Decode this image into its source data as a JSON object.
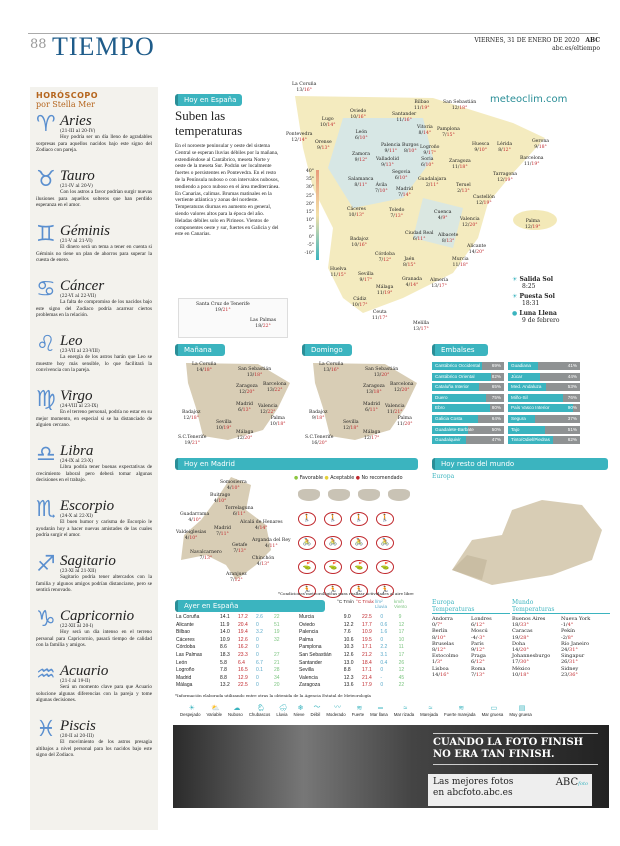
{
  "header": {
    "page_number": "88",
    "section": "TIEMPO",
    "date": "VIERNES, 31 DE ENERO DE 2020",
    "brand": "ABC",
    "url": "abc.es/eltiempo"
  },
  "horoscope": {
    "title": "HORÓSCOPO",
    "author": "por Stella Mer",
    "signs": [
      {
        "glyph": "♈",
        "name": "Aries",
        "dates": "(21-III al 20-IV)",
        "text": "Hoy podría ser un día lleno de agradables sorpresas para aquellos nacidos bajo este signo del Zodiaco con pareja."
      },
      {
        "glyph": "♉",
        "name": "Tauro",
        "dates": "(21-IV al 20-V)",
        "text": "Con los astros a favor podrían surgir nuevas ilusiones para aquellos solteros que han perdido esperanza en el amor."
      },
      {
        "glyph": "♊",
        "name": "Géminis",
        "dates": "(21-V al 21-VI)",
        "text": "El dinero será un tema a tener en cuenta si Géminis no tiene un plan de ahorros para superar la cuesta de enero."
      },
      {
        "glyph": "♋",
        "name": "Cáncer",
        "dates": "(22-VI al 22-VII)",
        "text": "La falta de compromiso de los nacidos bajo este signo del Zodiaco podría acarrear ciertos problemas en la relación."
      },
      {
        "glyph": "♌",
        "name": "Leo",
        "dates": "(23-VII al 23-VIII)",
        "text": "La energía de los astros harán que Leo se muestre hoy más sensible, lo que facilitará la convivencia con la pareja."
      },
      {
        "glyph": "♍",
        "name": "Virgo",
        "dates": "(24-VIII al 23-IX)",
        "text": "En el terreno personal, podría no estar en su mejor momento, en especial si se ha distanciado de alguien cercano."
      },
      {
        "glyph": "♎",
        "name": "Libra",
        "dates": "(24-IX al 23-X)",
        "text": "Libra podría tener buenas expectativas de crecimiento laboral pero deberá tomar algunas decisiones en el trabajo."
      },
      {
        "glyph": "♏",
        "name": "Escorpio",
        "dates": "(24-X al 22-XI)",
        "text": "El buen humor y carisma de Escorpio le ayudarán hoy a hacer nuevas amistades de las cuales podría surgir el amor."
      },
      {
        "glyph": "♐",
        "name": "Sagitario",
        "dates": "(23-XI al 21-XII)",
        "text": "Sagitario podría tener altercados con la familia y algunos amigos podrían distanciarse, pero se sentirá renovado."
      },
      {
        "glyph": "♑",
        "name": "Capricornio",
        "dates": "(22-XII al 20-I)",
        "text": "Hoy será un día intenso en el terreno personal para Capricornio, pasará tiempo de calidad con la familia y amigos."
      },
      {
        "glyph": "♒",
        "name": "Acuario",
        "dates": "(21-I al 19-II)",
        "text": "Será un momento clave para que Acuario solucione algunas diferencias con la pareja y tome algunas decisiones."
      },
      {
        "glyph": "♓",
        "name": "Piscis",
        "dates": "(20-II al 20-III)",
        "text": "El movimiento de los astros presagia altibajos a nivel personal para los nacidos bajo este signo del Zodiaco."
      }
    ]
  },
  "spain_today": {
    "tab": "Hoy en España",
    "headline": "Suben las temperaturas",
    "body": "En el noroeste peninsular y oeste del sistema Central se esperan lluvias débiles por la mañana, extendiéndose al Cantábrico, meseta Norte y oeste de la meseta Sur. Podrán ser localmente fuertes o persistentes en Pontevedra. En el resto de la Península nuboso o con intervalos nubosos, tendiendo a poco nuboso en el área mediterránea. En Canarias, calimas. Brumas matinales en la vertiente atlántica y zonas del nordeste. Temperaturas diurnas en aumento en general, siendo valores altos para la época del año. Heladas débiles solo en Pirineos. Vientos de componentes oeste y sur, fuertes en Galicia y del este en Canarias.",
    "brand": "meteoclim.com",
    "scale": [
      "40°",
      "35°",
      "30°",
      "25°",
      "20°",
      "15°",
      "10°",
      "5°",
      "0°",
      "-5°",
      "-10°"
    ],
    "cities": [
      [
        "La Coruña",
        "13",
        "16"
      ],
      [
        "Lugo",
        "10",
        "14"
      ],
      [
        "Oviedo",
        "10",
        "16"
      ],
      [
        "Pontevedra",
        "12",
        "14"
      ],
      [
        "Orense",
        "9",
        "13"
      ],
      [
        "Santander",
        "11",
        "16"
      ],
      [
        "Bilbao",
        "11",
        "19"
      ],
      [
        "San Sebastián",
        "12",
        "18"
      ],
      [
        "Vitoria",
        "8",
        "14"
      ],
      [
        "Pamplona",
        "7",
        "15"
      ],
      [
        "León",
        "6",
        "10"
      ],
      [
        "Palencia",
        "9",
        "11"
      ],
      [
        "Burgos",
        "8",
        "10"
      ],
      [
        "Logroño",
        "9",
        "17"
      ],
      [
        "Huesca",
        "9",
        "10"
      ],
      [
        "Lérida",
        "8",
        "12"
      ],
      [
        "Gerona",
        "9",
        "18"
      ],
      [
        "Zamora",
        "9",
        "12"
      ],
      [
        "Valladolid",
        "9",
        "13"
      ],
      [
        "Soria",
        "6",
        "10"
      ],
      [
        "Zaragoza",
        "11",
        "18"
      ],
      [
        "Barcelona",
        "11",
        "19"
      ],
      [
        "Segovia",
        "6",
        "10"
      ],
      [
        "Salamanca",
        "8",
        "11"
      ],
      [
        "Ávila",
        "7",
        "10"
      ],
      [
        "Madrid",
        "7",
        "14"
      ],
      [
        "Guadalajara",
        "2",
        "11"
      ],
      [
        "Teruel",
        "2",
        "13"
      ],
      [
        "Tarragona",
        "12",
        "19"
      ],
      [
        "Castellón",
        "12",
        "19"
      ],
      [
        "Cáceres",
        "10",
        "13"
      ],
      [
        "Toledo",
        "7",
        "13"
      ],
      [
        "Cuenca",
        "4",
        "9"
      ],
      [
        "Valencia",
        "12",
        "20"
      ],
      [
        "Palma",
        "12",
        "19"
      ],
      [
        "Badajoz",
        "10",
        "16"
      ],
      [
        "Ciudad Real",
        "6",
        "11"
      ],
      [
        "Albacete",
        "8",
        "13"
      ],
      [
        "Alicante",
        "14",
        "20"
      ],
      [
        "Córdoba",
        "7",
        "12"
      ],
      [
        "Jaén",
        "8",
        "15"
      ],
      [
        "Murcia",
        "11",
        "18"
      ],
      [
        "Huelva",
        "11",
        "15"
      ],
      [
        "Sevilla",
        "9",
        "17"
      ],
      [
        "Granada",
        "4",
        "14"
      ],
      [
        "Almería",
        "13",
        "17"
      ],
      [
        "Málaga",
        "11",
        "19"
      ],
      [
        "Cádiz",
        "10",
        "17"
      ],
      [
        "Ceuta",
        "11",
        "17"
      ],
      [
        "Melilla",
        "13",
        "17"
      ]
    ],
    "canarias": [
      [
        "Santa Cruz de Tenerife",
        "19",
        "21"
      ],
      [
        "Las Palmas",
        "18",
        "22"
      ]
    ]
  },
  "sun_moon": {
    "sunrise_label": "Salida Sol",
    "sunrise": "8:25",
    "sunset_label": "Puesta Sol",
    "sunset": "18:31",
    "moon_label": "Luna Llena",
    "moon_date": "9 de febrero"
  },
  "tomorrow": {
    "tab": "Mañana",
    "cities": [
      [
        "La Coruña",
        "14",
        "18"
      ],
      [
        "San Sebastián",
        "13",
        "18"
      ],
      [
        "Zaragoza",
        "12",
        "20"
      ],
      [
        "Barcelona",
        "13",
        "22"
      ],
      [
        "Madrid",
        "6",
        "13"
      ],
      [
        "Valencia",
        "12",
        "22"
      ],
      [
        "Palma",
        "10",
        "18"
      ],
      [
        "Badajoz",
        "12",
        "18"
      ],
      [
        "Sevilla",
        "10",
        "19"
      ],
      [
        "Málaga",
        "12",
        "20"
      ],
      [
        "S.C.Tenerife",
        "19",
        "21"
      ]
    ]
  },
  "sunday": {
    "tab": "Domingo",
    "cities": [
      [
        "La Coruña",
        "13",
        "16"
      ],
      [
        "San Sebastián",
        "13",
        "20"
      ],
      [
        "Zaragoza",
        "13",
        "18"
      ],
      [
        "Barcelona",
        "12",
        "20"
      ],
      [
        "Madrid",
        "6",
        "11"
      ],
      [
        "Valencia",
        "11",
        "21"
      ],
      [
        "Palma",
        "11",
        "20"
      ],
      [
        "Badajoz",
        "9",
        "18"
      ],
      [
        "Sevilla",
        "12",
        "18"
      ],
      [
        "Málaga",
        "12",
        "17"
      ],
      [
        "S.C.Tenerife",
        "16",
        "20"
      ]
    ]
  },
  "reservoirs": {
    "tab": "Embalses",
    "items": [
      [
        "Cantábrico Occidental",
        69
      ],
      [
        "Cantábrico Oriental",
        82
      ],
      [
        "Cataluña Interior",
        65
      ],
      [
        "Duero",
        75
      ],
      [
        "Ebro",
        80
      ],
      [
        "Galicia Costa",
        64
      ],
      [
        "Guadalete-Barbate",
        50
      ],
      [
        "Guadalquivir",
        47
      ],
      [
        "Guadiana",
        41
      ],
      [
        "Júcar",
        44
      ],
      [
        "Med. Andaluza",
        53
      ],
      [
        "Miño-Sil",
        76
      ],
      [
        "País Vasco Interior",
        90
      ],
      [
        "Segura",
        37
      ],
      [
        "Tajo",
        51
      ],
      [
        "Tinto/Odiel/Piedras",
        62
      ]
    ],
    "fill_color": "#3bb4bf",
    "empty_color": "#8f9293"
  },
  "madrid": {
    "tab": "Hoy en Madrid",
    "legend": [
      "Favorable",
      "Aceptable",
      "No recomendado"
    ],
    "legend_colors": [
      "#8dc63f",
      "#e5d13a",
      "#c0282d"
    ],
    "footnote": "*Condiciones meteorológicas para realizar actividades al aire libre",
    "cities": [
      [
        "Somosierra",
        "4",
        "10"
      ],
      [
        "Buitrago",
        "4",
        "10"
      ],
      [
        "Torrelaguna",
        "6",
        "11"
      ],
      [
        "Guadarrama",
        "4",
        "10"
      ],
      [
        "Alcalá de Henares",
        "4",
        "14"
      ],
      [
        "Valdeiglesias",
        "4",
        "10"
      ],
      [
        "Madrid",
        "7",
        "11"
      ],
      [
        "Getafe",
        "7",
        "13"
      ],
      [
        "Arganda del Rey",
        "4",
        "11"
      ],
      [
        "Navalcarnero",
        "7",
        "13"
      ],
      [
        "Chinchón",
        "4",
        "13"
      ],
      [
        "Aranjuez",
        "7",
        "12"
      ]
    ],
    "activities": [
      "hiking-icon",
      "cycling-icon",
      "golf-icon",
      "running-icon"
    ],
    "status": "No recomendado"
  },
  "world": {
    "tab": "Hoy resto del mundo",
    "region": "Europa"
  },
  "yesterday": {
    "tab": "Ayer en España",
    "headers": [
      "°C Tmín",
      "°C Tmáx",
      "l/m² Lluvia",
      "km/h Viento"
    ],
    "left": [
      [
        "La Coruña",
        "14.1",
        "17.2",
        "2.6",
        "22"
      ],
      [
        "Alicante",
        "11.9",
        "20.4",
        "0",
        "51"
      ],
      [
        "Bilbao",
        "14.0",
        "19.4",
        "3.2",
        "19"
      ],
      [
        "Cáceres",
        "10.9",
        "12.6",
        "0",
        "32"
      ],
      [
        "Córdoba",
        "8.6",
        "16.2",
        "0",
        ""
      ],
      [
        "Las Palmas",
        "18.3",
        "23.3",
        "0",
        "27"
      ],
      [
        "León",
        "5.8",
        "6.4",
        "6.7",
        "21"
      ],
      [
        "Logroño",
        "7.8",
        "16.5",
        "0.1",
        "28"
      ],
      [
        "Madrid",
        "8.8",
        "12.9",
        "0",
        "34"
      ],
      [
        "Málaga",
        "13.2",
        "22.5",
        "0",
        "20"
      ]
    ],
    "right": [
      [
        "Murcia",
        "9.0",
        "22.5",
        "0",
        "9"
      ],
      [
        "Oviedo",
        "12.2",
        "17.7",
        "0.6",
        "12"
      ],
      [
        "Palencia",
        "7.6",
        "10.9",
        "1.6",
        "17"
      ],
      [
        "Palma",
        "10.6",
        "19.5",
        "0",
        "10"
      ],
      [
        "Pamplona",
        "10.3",
        "17.1",
        "2.2",
        "11"
      ],
      [
        "San Sebastián",
        "12.6",
        "21.2",
        "3.1",
        "17"
      ],
      [
        "Santander",
        "13.0",
        "18.4",
        "0.4",
        "26"
      ],
      [
        "Sevilla",
        "8.8",
        "17.1",
        "0",
        "12"
      ],
      [
        "Valencia",
        "12.3",
        "21.4",
        "-",
        "45"
      ],
      [
        "Zaragoza",
        "13.6",
        "17.9",
        "0",
        "22"
      ]
    ],
    "footnote": "*Información elaborada utilizando entre otras la obtenida de la Agencia Estatal de Meteorología"
  },
  "europe": {
    "title": "Europa",
    "subtitle": "Temperaturas",
    "cities": [
      [
        "Andorra",
        "0",
        "7"
      ],
      [
        "Londres",
        "6",
        "12"
      ],
      [
        "Berlín",
        "8",
        "10"
      ],
      [
        "Moscú",
        "-4",
        "-3"
      ],
      [
        "Bruselas",
        "8",
        "12"
      ],
      [
        "París",
        "9",
        "12"
      ],
      [
        "Estocolmo",
        "1",
        "3"
      ],
      [
        "Praga",
        "6",
        "12"
      ],
      [
        "Lisboa",
        "14",
        "16"
      ],
      [
        "Roma",
        "7",
        "13"
      ]
    ]
  },
  "worldtemps": {
    "title": "Mundo",
    "subtitle": "Temperaturas",
    "cities": [
      [
        "Buenos Aires",
        "18",
        "33"
      ],
      [
        "Nueva York",
        "-1",
        "4"
      ],
      [
        "Caracas",
        "19",
        "28"
      ],
      [
        "Pekín",
        "-2",
        "8"
      ],
      [
        "Doha",
        "14",
        "20"
      ],
      [
        "Río Janeiro",
        "24",
        "31"
      ],
      [
        "Johannesburgo",
        "17",
        "30"
      ],
      [
        "Singapur",
        "26",
        "31"
      ],
      [
        "México",
        "10",
        "18"
      ],
      [
        "Sidney",
        "23",
        "36"
      ]
    ]
  },
  "legend": [
    [
      "☀",
      "Despejado"
    ],
    [
      "⛅",
      "Variable"
    ],
    [
      "☁",
      "Nuboso"
    ],
    [
      "🌦",
      "Chubascos"
    ],
    [
      "🌧",
      "Lluvia"
    ],
    [
      "❄",
      "Nieve"
    ],
    [
      "〜",
      "Débil"
    ],
    [
      "〰",
      "Moderado"
    ],
    [
      "≋",
      "Fuerte"
    ],
    [
      "═",
      "Mar llana"
    ],
    [
      "≈",
      "Mar rizada"
    ],
    [
      "≈",
      "Marejada"
    ],
    [
      "≋",
      "Fuerte marejada"
    ],
    [
      "▭",
      "Mar gruesa"
    ],
    [
      "▤",
      "Muy gruesa"
    ]
  ],
  "ad": {
    "headline1": "CUANDO LA FOTO FINISH",
    "headline2": "NO ERA TAN FINISH.",
    "line1": "Las mejores fotos",
    "line2": "en abcfoto.abc.es",
    "logo": "ABC",
    "logo_sub": "foto"
  }
}
